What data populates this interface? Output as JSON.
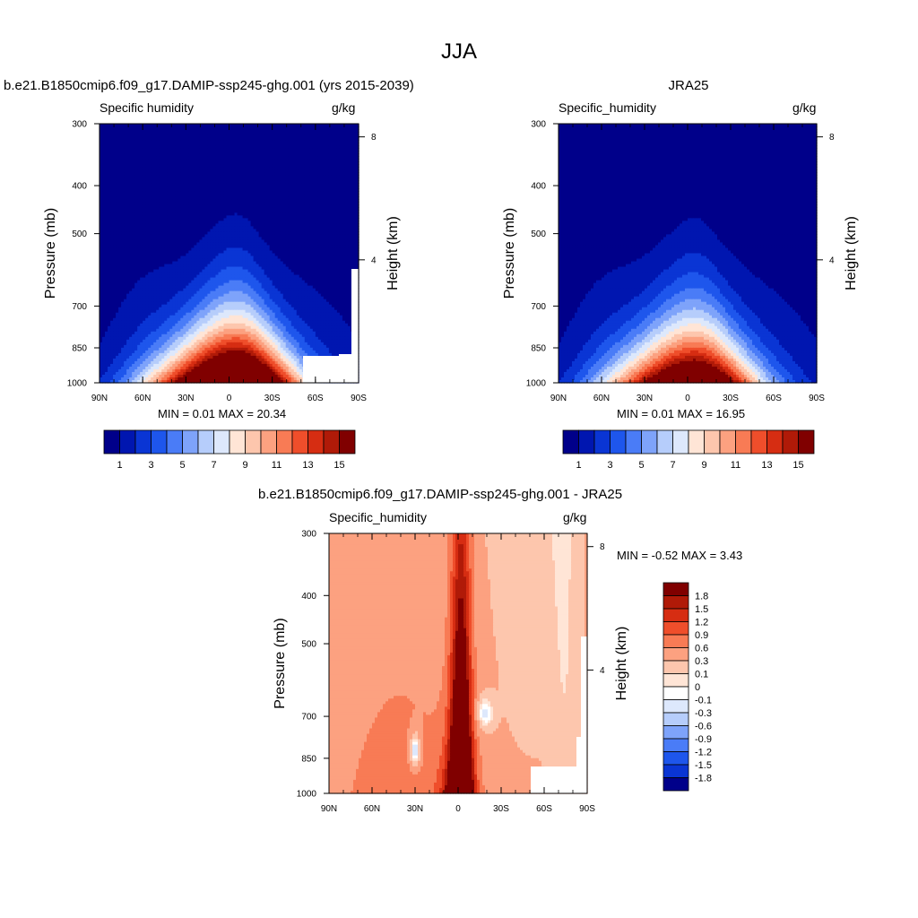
{
  "main_title": "JJA",
  "panels": {
    "model": {
      "title": "b.e21.B1850cmip6.f09_g17.DAMIP-ssp245-ghg.001 (yrs 2015-2039)",
      "left_header": "Specific humidity",
      "right_header": "g/kg",
      "minmax": "MIN =   0.01  MAX =  20.34"
    },
    "obs": {
      "title": "JRA25",
      "left_header": "Specific_humidity",
      "right_header": "g/kg",
      "minmax": "MIN =   0.01  MAX =  16.95"
    },
    "diff": {
      "title": "b.e21.B1850cmip6.f09_g17.DAMIP-ssp245-ghg.001 - JRA25",
      "left_header": "Specific_humidity",
      "right_header": "g/kg",
      "minmax": "MIN =  -0.52  MAX =   3.43"
    }
  },
  "axes": {
    "ylabel": "Pressure (mb)",
    "y2label": "Height (km)",
    "pressure_ticks": [
      "300",
      "400",
      "500",
      "700",
      "850",
      "1000"
    ],
    "lat_ticks": [
      "90N",
      "60N",
      "30N",
      "0",
      "30S",
      "60S",
      "90S"
    ],
    "height_ticks": [
      "8",
      "4"
    ]
  },
  "colorbars": {
    "abs_labels": [
      "1",
      "3",
      "5",
      "7",
      "9",
      "11",
      "13",
      "15"
    ],
    "abs_colors": [
      "#00008a",
      "#0016b0",
      "#0a35d4",
      "#1e56ec",
      "#4a7cf7",
      "#7ea3fa",
      "#b6cdfb",
      "#dde8fc",
      "#ffe5d6",
      "#fdc6ad",
      "#fca180",
      "#f87b55",
      "#ef4e2b",
      "#d62d12",
      "#b01a08",
      "#800000"
    ],
    "diff_labels": [
      "1.8",
      "1.5",
      "1.2",
      "0.9",
      "0.6",
      "0.3",
      "0.1",
      "0",
      "-0.1",
      "-0.3",
      "-0.6",
      "-0.9",
      "-1.2",
      "-1.5",
      "-1.8"
    ],
    "diff_colors": [
      "#800000",
      "#b01a08",
      "#d62d12",
      "#ef4e2b",
      "#f87b55",
      "#fca180",
      "#fdc6ad",
      "#ffe5d6",
      "#ffffff",
      "#dde8fc",
      "#b6cdfb",
      "#7ea3fa",
      "#4a7cf7",
      "#1e56ec",
      "#0a35d4",
      "#00008a"
    ]
  },
  "chart_data": [
    {
      "type": "heatmap",
      "title": "b.e21.B1850cmip6.f09_g17.DAMIP-ssp245-ghg.001 (yrs 2015-2039)",
      "variable": "Specific humidity",
      "units": "g/kg",
      "xlabel": "",
      "ylabel": "Pressure (mb)",
      "y2label": "Height (km)",
      "x_ticks": [
        "90N",
        "60N",
        "30N",
        "0",
        "30S",
        "60S",
        "90S"
      ],
      "y_ticks": [
        300,
        400,
        500,
        700,
        850,
        1000
      ],
      "contour_levels": [
        1,
        2,
        3,
        4,
        5,
        6,
        7,
        8,
        9,
        10,
        11,
        12,
        13,
        14,
        15
      ],
      "min": 0.01,
      "max": 20.34
    },
    {
      "type": "heatmap",
      "title": "JRA25",
      "variable": "Specific_humidity",
      "units": "g/kg",
      "xlabel": "",
      "ylabel": "Pressure (mb)",
      "y2label": "Height (km)",
      "x_ticks": [
        "90N",
        "60N",
        "30N",
        "0",
        "30S",
        "60S",
        "90S"
      ],
      "y_ticks": [
        300,
        400,
        500,
        700,
        850,
        1000
      ],
      "contour_levels": [
        1,
        2,
        3,
        4,
        5,
        6,
        7,
        8,
        9,
        10,
        11,
        12,
        13,
        14,
        15
      ],
      "min": 0.01,
      "max": 16.95
    },
    {
      "type": "heatmap",
      "title": "b.e21.B1850cmip6.f09_g17.DAMIP-ssp245-ghg.001 - JRA25",
      "variable": "Specific_humidity",
      "units": "g/kg",
      "xlabel": "",
      "ylabel": "Pressure (mb)",
      "y2label": "Height (km)",
      "x_ticks": [
        "90N",
        "60N",
        "30N",
        "0",
        "30S",
        "60S",
        "90S"
      ],
      "y_ticks": [
        300,
        400,
        500,
        700,
        850,
        1000
      ],
      "contour_levels": [
        -1.8,
        -1.5,
        -1.2,
        -0.9,
        -0.6,
        -0.3,
        -0.1,
        0,
        0.1,
        0.3,
        0.6,
        0.9,
        1.2,
        1.5,
        1.8
      ],
      "min": -0.52,
      "max": 3.43
    }
  ]
}
